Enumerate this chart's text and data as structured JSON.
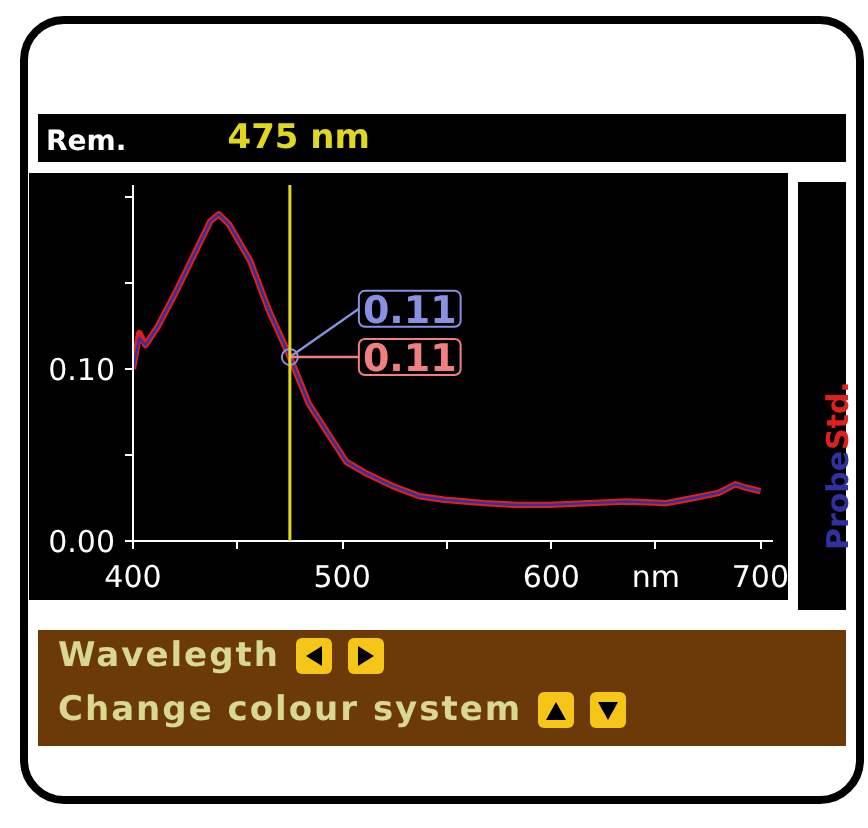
{
  "chart_data": {
    "type": "line",
    "ylabel": "Rem.",
    "xlim": [
      400,
      706
    ],
    "ylim": [
      0,
      0.207
    ],
    "xticks": [
      400,
      {
        "value": 450,
        "label": null
      },
      500,
      {
        "value": 550,
        "label": null
      },
      600,
      {
        "value": 650,
        "label": "nm"
      },
      700
    ],
    "yticks": [
      {
        "value": 0,
        "label": "0.00"
      },
      {
        "value": 0.05,
        "label": null
      },
      {
        "value": 0.1,
        "label": "0.10"
      },
      {
        "value": 0.15,
        "label": null
      },
      {
        "value": 0.2,
        "label": null
      }
    ],
    "x": [
      400,
      403,
      406,
      412,
      421,
      431,
      437,
      441,
      446,
      456,
      465,
      475,
      484,
      493,
      502,
      512,
      524,
      537,
      549,
      568,
      583,
      599,
      618,
      636,
      655,
      668,
      680,
      688,
      693,
      700
    ],
    "series": [
      {
        "name": "Std.",
        "color": "#e02020",
        "values": [
          0.1,
          0.121,
          0.114,
          0.125,
          0.146,
          0.171,
          0.186,
          0.19,
          0.184,
          0.163,
          0.134,
          0.107,
          0.08,
          0.063,
          0.046,
          0.039,
          0.032,
          0.026,
          0.024,
          0.022,
          0.021,
          0.021,
          0.022,
          0.023,
          0.022,
          0.025,
          0.028,
          0.033,
          0.031,
          0.029
        ]
      },
      {
        "name": "Probe",
        "color": "#3030a0",
        "values": [
          0.1,
          0.118,
          0.114,
          0.125,
          0.146,
          0.171,
          0.186,
          0.19,
          0.184,
          0.163,
          0.134,
          0.107,
          0.08,
          0.063,
          0.046,
          0.039,
          0.032,
          0.026,
          0.024,
          0.022,
          0.021,
          0.021,
          0.022,
          0.023,
          0.022,
          0.025,
          0.028,
          0.033,
          0.031,
          0.029
        ]
      }
    ],
    "ref_lines": [
      {
        "axis": "x",
        "value": 475,
        "label": "475 nm",
        "color": "#e0d820"
      }
    ],
    "annotations": [
      {
        "text": "0.11",
        "x": 475,
        "y": 0.107
      },
      {
        "text": "0.11",
        "x": 475,
        "y": 0.107
      },
      "Wavelegth",
      "Change colour system"
    ],
    "grid": false,
    "marker": "none",
    "line_style": "solid"
  }
}
